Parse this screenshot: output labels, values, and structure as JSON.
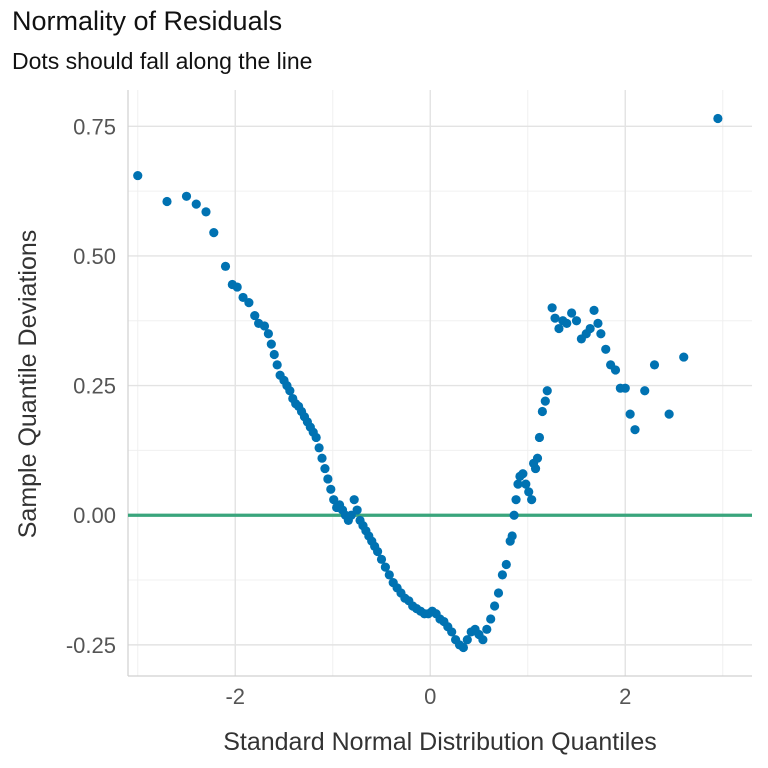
{
  "chart_data": {
    "type": "scatter",
    "title": "Normality of Residuals",
    "subtitle": "Dots should fall along the line",
    "xlabel": "Standard Normal Distribution Quantiles",
    "ylabel": "Sample Quantile Deviations",
    "xlim": [
      -3.1,
      3.3
    ],
    "ylim": [
      -0.31,
      0.82
    ],
    "x_ticks": [
      -2,
      0,
      2
    ],
    "x_tick_labels": [
      "-2",
      "0",
      "2"
    ],
    "y_ticks": [
      -0.25,
      0.0,
      0.25,
      0.5,
      0.75
    ],
    "y_tick_labels": [
      "-0.25",
      "0.00",
      "0.25",
      "0.50",
      "0.75"
    ],
    "grid": true,
    "point_color": "#0072B2",
    "reference_line": {
      "y": 0.0,
      "color": "#3AA57C"
    },
    "points": [
      [
        -3.0,
        0.655
      ],
      [
        -2.7,
        0.605
      ],
      [
        -2.5,
        0.615
      ],
      [
        -2.4,
        0.6
      ],
      [
        -2.3,
        0.585
      ],
      [
        -2.22,
        0.545
      ],
      [
        -2.1,
        0.48
      ],
      [
        -2.03,
        0.445
      ],
      [
        -1.98,
        0.44
      ],
      [
        -1.92,
        0.42
      ],
      [
        -1.86,
        0.41
      ],
      [
        -1.8,
        0.385
      ],
      [
        -1.76,
        0.37
      ],
      [
        -1.7,
        0.365
      ],
      [
        -1.66,
        0.35
      ],
      [
        -1.63,
        0.33
      ],
      [
        -1.6,
        0.31
      ],
      [
        -1.57,
        0.29
      ],
      [
        -1.54,
        0.27
      ],
      [
        -1.5,
        0.26
      ],
      [
        -1.47,
        0.25
      ],
      [
        -1.44,
        0.24
      ],
      [
        -1.41,
        0.225
      ],
      [
        -1.38,
        0.215
      ],
      [
        -1.35,
        0.21
      ],
      [
        -1.32,
        0.2
      ],
      [
        -1.29,
        0.19
      ],
      [
        -1.26,
        0.18
      ],
      [
        -1.23,
        0.17
      ],
      [
        -1.2,
        0.16
      ],
      [
        -1.17,
        0.15
      ],
      [
        -1.14,
        0.13
      ],
      [
        -1.11,
        0.11
      ],
      [
        -1.08,
        0.09
      ],
      [
        -1.05,
        0.07
      ],
      [
        -1.02,
        0.05
      ],
      [
        -0.99,
        0.03
      ],
      [
        -0.96,
        0.015
      ],
      [
        -0.93,
        0.02
      ],
      [
        -0.9,
        0.01
      ],
      [
        -0.87,
        0.0
      ],
      [
        -0.84,
        -0.01
      ],
      [
        -0.81,
        0.0
      ],
      [
        -0.78,
        0.03
      ],
      [
        -0.75,
        0.01
      ],
      [
        -0.72,
        -0.01
      ],
      [
        -0.69,
        -0.02
      ],
      [
        -0.66,
        -0.03
      ],
      [
        -0.63,
        -0.04
      ],
      [
        -0.6,
        -0.05
      ],
      [
        -0.57,
        -0.06
      ],
      [
        -0.54,
        -0.07
      ],
      [
        -0.5,
        -0.085
      ],
      [
        -0.46,
        -0.1
      ],
      [
        -0.42,
        -0.115
      ],
      [
        -0.38,
        -0.13
      ],
      [
        -0.34,
        -0.14
      ],
      [
        -0.3,
        -0.15
      ],
      [
        -0.26,
        -0.16
      ],
      [
        -0.22,
        -0.165
      ],
      [
        -0.18,
        -0.175
      ],
      [
        -0.14,
        -0.18
      ],
      [
        -0.1,
        -0.185
      ],
      [
        -0.06,
        -0.19
      ],
      [
        -0.02,
        -0.19
      ],
      [
        0.02,
        -0.185
      ],
      [
        0.06,
        -0.19
      ],
      [
        0.1,
        -0.2
      ],
      [
        0.14,
        -0.205
      ],
      [
        0.18,
        -0.215
      ],
      [
        0.22,
        -0.225
      ],
      [
        0.26,
        -0.24
      ],
      [
        0.3,
        -0.25
      ],
      [
        0.34,
        -0.255
      ],
      [
        0.38,
        -0.24
      ],
      [
        0.42,
        -0.225
      ],
      [
        0.46,
        -0.22
      ],
      [
        0.5,
        -0.23
      ],
      [
        0.54,
        -0.24
      ],
      [
        0.58,
        -0.22
      ],
      [
        0.62,
        -0.2
      ],
      [
        0.66,
        -0.175
      ],
      [
        0.7,
        -0.15
      ],
      [
        0.74,
        -0.115
      ],
      [
        0.78,
        -0.095
      ],
      [
        0.82,
        -0.05
      ],
      [
        0.84,
        -0.04
      ],
      [
        0.86,
        0.0
      ],
      [
        0.88,
        0.03
      ],
      [
        0.9,
        0.06
      ],
      [
        0.92,
        0.075
      ],
      [
        0.95,
        0.08
      ],
      [
        0.98,
        0.06
      ],
      [
        1.01,
        0.045
      ],
      [
        1.04,
        0.03
      ],
      [
        1.06,
        0.1
      ],
      [
        1.08,
        0.09
      ],
      [
        1.1,
        0.11
      ],
      [
        1.12,
        0.15
      ],
      [
        1.15,
        0.2
      ],
      [
        1.18,
        0.22
      ],
      [
        1.2,
        0.24
      ],
      [
        1.25,
        0.4
      ],
      [
        1.28,
        0.38
      ],
      [
        1.32,
        0.36
      ],
      [
        1.36,
        0.375
      ],
      [
        1.4,
        0.37
      ],
      [
        1.45,
        0.39
      ],
      [
        1.5,
        0.375
      ],
      [
        1.55,
        0.34
      ],
      [
        1.6,
        0.35
      ],
      [
        1.64,
        0.36
      ],
      [
        1.68,
        0.395
      ],
      [
        1.72,
        0.37
      ],
      [
        1.75,
        0.35
      ],
      [
        1.8,
        0.32
      ],
      [
        1.85,
        0.29
      ],
      [
        1.9,
        0.28
      ],
      [
        1.95,
        0.245
      ],
      [
        2.0,
        0.245
      ],
      [
        2.05,
        0.195
      ],
      [
        2.1,
        0.165
      ],
      [
        2.2,
        0.24
      ],
      [
        2.3,
        0.29
      ],
      [
        2.45,
        0.195
      ],
      [
        2.6,
        0.305
      ],
      [
        2.95,
        0.765
      ]
    ]
  }
}
